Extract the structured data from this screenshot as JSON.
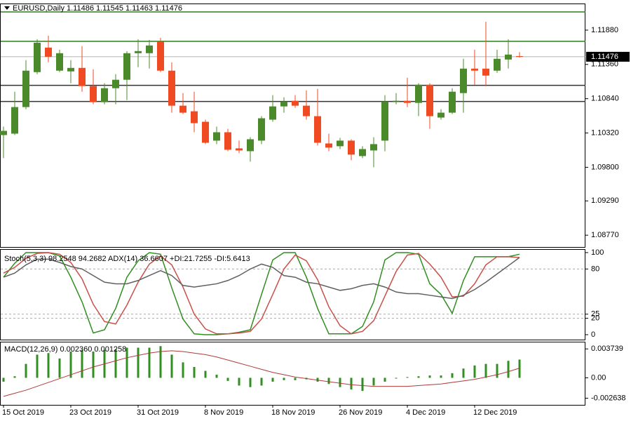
{
  "chart_data": [
    {
      "type": "candlestick",
      "title": "EURUSD,Daily  1.11486 1.11545 1.11463 1.11476",
      "last_price_label": "1.11476",
      "up_color": "#4a8a2a",
      "down_color": "#f04a22",
      "ylim": [
        1.08591,
        1.12273
      ],
      "yticks": [
        {
          "value": 1.1188,
          "label": "1.11880"
        },
        {
          "value": 1.1136,
          "label": "1.11360"
        },
        {
          "value": 1.1084,
          "label": "1.10840"
        },
        {
          "value": 1.1032,
          "label": "1.10320"
        },
        {
          "value": 1.098,
          "label": "1.09800"
        },
        {
          "value": 1.0929,
          "label": "1.09290"
        },
        {
          "value": 1.0877,
          "label": "1.08770"
        }
      ],
      "hlines": [
        {
          "value": 1.12156,
          "color": "#2e7d1e"
        },
        {
          "value": 1.1171,
          "color": "#2e7d1e"
        },
        {
          "value": 1.11042,
          "color": "#333333"
        },
        {
          "value": 1.10798,
          "color": "#333333"
        }
      ],
      "open": [
        1.10288,
        1.1031,
        1.10713,
        1.11243,
        1.11615,
        1.11265,
        1.11254,
        1.11307,
        1.11031,
        1.10787,
        1.10999,
        1.11127,
        1.1153,
        1.1153,
        1.1171,
        1.11265,
        1.10734,
        1.10649,
        1.1049,
        1.10204,
        1.10331,
        1.10087,
        1.10044,
        1.10204,
        1.10522,
        1.10723,
        1.10808,
        1.10734,
        1.10575,
        1.10161,
        1.10119,
        1.10204,
        1.0997,
        1.10055,
        1.10204,
        1.10798,
        1.10808,
        1.10776,
        1.11052,
        1.10554,
        1.10628,
        1.10925,
        1.11296,
        1.11296,
        1.11265,
        1.11434,
        1.11486
      ],
      "high": [
        1.10416,
        1.10946,
        1.11424,
        1.11742,
        1.11795,
        1.11583,
        1.11424,
        1.11636,
        1.11286,
        1.11074,
        1.11211,
        1.11562,
        1.11742,
        1.11731,
        1.11763,
        1.11392,
        1.10925,
        1.10946,
        1.10522,
        1.10416,
        1.10384,
        1.10204,
        1.10257,
        1.10575,
        1.10893,
        1.10861,
        1.10893,
        1.10967,
        1.10989,
        1.1031,
        1.10246,
        1.10225,
        1.10119,
        1.10257,
        1.10893,
        1.10925,
        1.11158,
        1.11074,
        1.11074,
        1.10681,
        1.10999,
        1.11445,
        1.11583,
        1.12007,
        1.11583,
        1.11742,
        1.11545
      ],
      "low": [
        1.09938,
        1.10288,
        1.10681,
        1.11211,
        1.11392,
        1.11243,
        1.11074,
        1.10946,
        1.10755,
        1.10755,
        1.10755,
        1.10819,
        1.11318,
        1.11296,
        1.11243,
        1.10628,
        1.10607,
        1.10331,
        1.10151,
        1.10151,
        1.10044,
        1.10013,
        1.09885,
        1.10151,
        1.1049,
        1.10628,
        1.10702,
        1.10522,
        1.1013,
        1.10044,
        1.10076,
        1.09906,
        1.09938,
        1.098,
        1.10044,
        1.10755,
        1.10713,
        1.10575,
        1.10384,
        1.10522,
        1.10607,
        1.10628,
        1.11052,
        1.11031,
        1.11233,
        1.11296,
        1.11463
      ],
      "close": [
        1.10352,
        1.10713,
        1.11265,
        1.11689,
        1.11477,
        1.1153,
        1.11307,
        1.11031,
        1.10787,
        1.10999,
        1.11127,
        1.1153,
        1.11562,
        1.11647,
        1.11265,
        1.10734,
        1.10628,
        1.10469,
        1.10172,
        1.10331,
        1.10066,
        1.10055,
        1.10225,
        1.10543,
        1.10723,
        1.10798,
        1.10734,
        1.10575,
        1.10172,
        1.10098,
        1.10204,
        1.09992,
        1.10076,
        1.10151,
        1.10798,
        1.10808,
        1.10776,
        1.11052,
        1.10575,
        1.10628,
        1.10946,
        1.11296,
        1.11265,
        1.1119,
        1.11445,
        1.11509,
        1.11476
      ]
    },
    {
      "type": "line",
      "title": "Stoch(5,3,3) 98.2548 94.2682  ADX(14) 36.6607 +DI:21.7255 -DI:5.6413",
      "ylim": [
        -6,
        103.4
      ],
      "yticks": [
        100,
        80,
        25,
        20,
        0
      ],
      "levels": [
        80,
        25,
        20
      ],
      "series": [
        {
          "color": "#2f8f1f",
          "values": [
            70,
            87,
            100,
            100,
            100,
            96,
            70,
            40,
            2,
            6,
            32,
            70,
            90,
            100,
            98,
            57,
            19,
            1,
            0,
            0,
            1,
            3,
            6,
            49,
            91,
            100,
            100,
            70,
            32,
            1,
            1,
            1,
            10,
            40,
            91,
            100,
            100,
            98,
            62,
            49,
            26,
            66,
            95,
            95,
            95,
            95,
            98
          ]
        },
        {
          "color": "#c8504a",
          "values": [
            75,
            82,
            93,
            99,
            100,
            98,
            88,
            68,
            37,
            16,
            13,
            36,
            64,
            86,
            96,
            85,
            58,
            25,
            7,
            1,
            1,
            2,
            4,
            19,
            49,
            80,
            97,
            90,
            67,
            34,
            11,
            1,
            4,
            17,
            47,
            77,
            97,
            99,
            86,
            70,
            46,
            47,
            62,
            85,
            95,
            95,
            94
          ]
        },
        {
          "color": "#606060",
          "values": [
            70,
            75,
            85,
            92,
            92,
            88,
            83,
            80,
            72,
            64,
            62,
            62,
            66,
            72,
            78,
            72,
            60,
            58,
            60,
            62,
            66,
            72,
            80,
            86,
            82,
            72,
            70,
            64,
            62,
            58,
            54,
            56,
            60,
            62,
            58,
            52,
            50,
            50,
            48,
            46,
            44,
            48,
            55,
            64,
            74,
            84,
            94
          ]
        }
      ]
    },
    {
      "type": "macd",
      "title": "MACD(12,26,9) 0.002360 0.001258",
      "ylim": [
        -0.0035,
        0.00458
      ],
      "yticks": [
        {
          "value": 0.003739,
          "label": "0.003739"
        },
        {
          "value": 0,
          "label": "0.00"
        },
        {
          "value": -0.002638,
          "label": "-0.002638"
        }
      ],
      "categories": [
        "15 Oct 2019",
        null,
        null,
        null,
        null,
        null,
        "23 Oct 2019",
        null,
        null,
        null,
        null,
        null,
        "31 Oct 2019",
        null,
        null,
        null,
        null,
        null,
        "8 Nov 2019",
        null,
        null,
        null,
        null,
        null,
        "18 Nov 2019",
        null,
        null,
        null,
        null,
        null,
        "26 Nov 2019",
        null,
        null,
        null,
        null,
        null,
        "4 Dec 2019",
        null,
        null,
        null,
        null,
        null,
        "12 Dec 2019",
        null,
        null,
        null,
        null
      ],
      "series": [
        {
          "style": "bar",
          "color": "#2f8f1f",
          "values": [
            -0.0005,
            0.0002,
            0.0018,
            0.003,
            0.0032,
            0.0025,
            0.0034,
            0.0036,
            0.0034,
            0.0036,
            0.0037,
            0.0039,
            0.0039,
            0.0039,
            0.0041,
            0.003,
            0.002,
            0.0014,
            0.0009,
            0.0004,
            -0.0004,
            -0.001,
            -0.0012,
            -0.001,
            -0.0005,
            -0.0003,
            -0.0003,
            -0.0002,
            -0.0005,
            -0.0008,
            -0.0012,
            -0.0015,
            -0.0017,
            -0.001,
            -0.0005,
            -0.0001,
            0.0001,
            0.0002,
            0.0003,
            0.0003,
            0.0006,
            0.0012,
            0.0016,
            0.0018,
            0.0018,
            0.0022,
            0.00236
          ]
        },
        {
          "style": "line",
          "color": "#b03a3a",
          "values": [
            -0.0024,
            -0.002,
            -0.0016,
            -0.0011,
            -0.0006,
            -0.0001,
            0.0004,
            0.0009,
            0.0014,
            0.0018,
            0.0022,
            0.0026,
            0.0029,
            0.0032,
            0.0034,
            0.0035,
            0.0034,
            0.0032,
            0.003,
            0.0027,
            0.0023,
            0.0019,
            0.0015,
            0.0011,
            0.0007,
            0.0004,
            0.0001,
            -0.0001,
            -0.0003,
            -0.0005,
            -0.0007,
            -0.0009,
            -0.001,
            -0.0011,
            -0.0011,
            -0.0011,
            -0.0011,
            -0.001,
            -0.0009,
            -0.0008,
            -0.0006,
            -0.0004,
            -0.0002,
            0.0001,
            0.0004,
            0.0008,
            0.001258
          ]
        }
      ]
    }
  ]
}
